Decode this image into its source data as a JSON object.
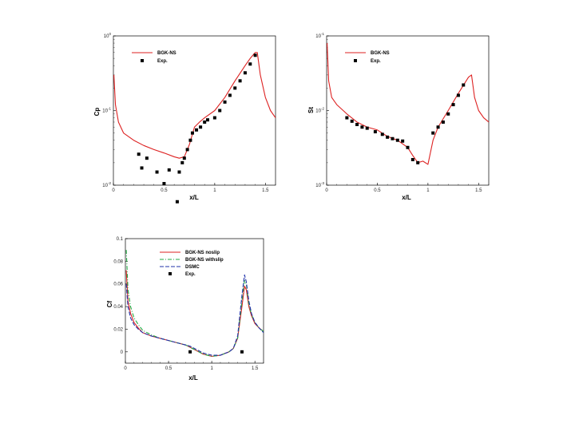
{
  "chart_data": [
    {
      "type": "line",
      "id": "cp",
      "xlabel": "x/L",
      "ylabel": "Cp",
      "xlim": [
        0,
        1.6
      ],
      "ylog": true,
      "ylim": [
        0.01,
        1
      ],
      "xticks": [
        {
          "v": 0,
          "label": "0"
        },
        {
          "v": 0.5,
          "label": "0.5"
        },
        {
          "v": 1,
          "label": "1"
        },
        {
          "v": 1.5,
          "label": "1.5"
        }
      ],
      "yticks": [
        {
          "v": 1,
          "base": "10",
          "exp": "0"
        },
        {
          "v": 0.1,
          "base": "10",
          "exp": "-1"
        },
        {
          "v": 0.01,
          "base": "10",
          "exp": "-2"
        }
      ],
      "legend": [
        "BGK-NS",
        "Exp."
      ],
      "series": [
        {
          "name": "BGK-NS",
          "color": "#dd2222",
          "style": "solid",
          "x": [
            0.005,
            0.02,
            0.05,
            0.1,
            0.2,
            0.3,
            0.4,
            0.5,
            0.6,
            0.65,
            0.7,
            0.75,
            0.8,
            0.85,
            0.9,
            1.0,
            1.1,
            1.2,
            1.3,
            1.35,
            1.4,
            1.42,
            1.45,
            1.5,
            1.55,
            1.6
          ],
          "y": [
            0.3,
            0.12,
            0.07,
            0.05,
            0.04,
            0.034,
            0.03,
            0.027,
            0.024,
            0.023,
            0.024,
            0.035,
            0.06,
            0.07,
            0.08,
            0.1,
            0.15,
            0.25,
            0.4,
            0.5,
            0.6,
            0.6,
            0.3,
            0.15,
            0.1,
            0.08
          ]
        }
      ],
      "points": {
        "name": "Exp.",
        "x": [
          0.25,
          0.28,
          0.33,
          0.43,
          0.5,
          0.55,
          0.63,
          0.65,
          0.68,
          0.7,
          0.73,
          0.76,
          0.78,
          0.82,
          0.86,
          0.9,
          0.93,
          1.0,
          1.05,
          1.1,
          1.15,
          1.2,
          1.25,
          1.3,
          1.35,
          1.4
        ],
        "y": [
          0.026,
          0.017,
          0.023,
          0.015,
          0.0105,
          0.016,
          0.006,
          0.015,
          0.02,
          0.023,
          0.03,
          0.04,
          0.05,
          0.055,
          0.06,
          0.07,
          0.075,
          0.08,
          0.1,
          0.13,
          0.16,
          0.2,
          0.25,
          0.32,
          0.42,
          0.55
        ]
      }
    },
    {
      "type": "line",
      "id": "st",
      "xlabel": "x/L",
      "ylabel": "St",
      "xlim": [
        0,
        1.6
      ],
      "ylog": true,
      "ylim": [
        0.001,
        0.1
      ],
      "xticks": [
        {
          "v": 0,
          "label": "0"
        },
        {
          "v": 0.5,
          "label": "0.5"
        },
        {
          "v": 1,
          "label": "1"
        },
        {
          "v": 1.5,
          "label": "1.5"
        }
      ],
      "yticks": [
        {
          "v": 0.1,
          "base": "10",
          "exp": "-1"
        },
        {
          "v": 0.01,
          "base": "10",
          "exp": "-2"
        },
        {
          "v": 0.001,
          "base": "10",
          "exp": "-3"
        }
      ],
      "legend": [
        "BGK-NS",
        "Exp."
      ],
      "series": [
        {
          "name": "BGK-NS",
          "color": "#dd2222",
          "style": "solid",
          "x": [
            0.005,
            0.02,
            0.05,
            0.1,
            0.2,
            0.3,
            0.4,
            0.5,
            0.6,
            0.7,
            0.8,
            0.85,
            0.9,
            0.95,
            1.0,
            1.05,
            1.1,
            1.2,
            1.3,
            1.4,
            1.43,
            1.46,
            1.5,
            1.55,
            1.6
          ],
          "y": [
            0.08,
            0.025,
            0.015,
            0.012,
            0.009,
            0.007,
            0.006,
            0.0055,
            0.0045,
            0.004,
            0.0032,
            0.0025,
            0.002,
            0.0021,
            0.0019,
            0.004,
            0.006,
            0.01,
            0.017,
            0.028,
            0.03,
            0.015,
            0.01,
            0.008,
            0.007
          ]
        }
      ],
      "points": {
        "name": "Exp.",
        "x": [
          0.2,
          0.25,
          0.3,
          0.35,
          0.4,
          0.48,
          0.55,
          0.6,
          0.65,
          0.7,
          0.75,
          0.8,
          0.85,
          0.9,
          1.05,
          1.1,
          1.15,
          1.2,
          1.25,
          1.3,
          1.35
        ],
        "y": [
          0.008,
          0.0072,
          0.0065,
          0.006,
          0.0058,
          0.0052,
          0.0048,
          0.0044,
          0.0042,
          0.004,
          0.0039,
          0.0032,
          0.0022,
          0.002,
          0.005,
          0.006,
          0.007,
          0.009,
          0.012,
          0.016,
          0.022
        ]
      }
    },
    {
      "type": "line",
      "id": "cf",
      "xlabel": "x/L",
      "ylabel": "Cf",
      "xlim": [
        0,
        1.6
      ],
      "ylog": false,
      "ylim": [
        -0.01,
        0.1
      ],
      "xticks": [
        {
          "v": 0,
          "label": "0"
        },
        {
          "v": 0.5,
          "label": "0.5"
        },
        {
          "v": 1,
          "label": "1"
        },
        {
          "v": 1.5,
          "label": "1.5"
        }
      ],
      "yticks": [
        {
          "v": 0.1,
          "label": "0.1"
        },
        {
          "v": 0.08,
          "label": "0.08"
        },
        {
          "v": 0.06,
          "label": "0.06"
        },
        {
          "v": 0.04,
          "label": "0.04"
        },
        {
          "v": 0.02,
          "label": "0.02"
        },
        {
          "v": 0,
          "label": "0"
        }
      ],
      "legend": [
        "BGK-NS noslip",
        "BGK-NS withslip",
        "DSMC",
        "Exp."
      ],
      "series": [
        {
          "name": "BGK-NS noslip",
          "color": "#dd2222",
          "style": "solid",
          "x": [
            0.01,
            0.03,
            0.06,
            0.1,
            0.15,
            0.2,
            0.3,
            0.4,
            0.5,
            0.6,
            0.7,
            0.75,
            0.8,
            0.85,
            0.9,
            1.0,
            1.1,
            1.2,
            1.25,
            1.3,
            1.35,
            1.38,
            1.4,
            1.43,
            1.46,
            1.5,
            1.55,
            1.6
          ],
          "y": [
            0.072,
            0.045,
            0.034,
            0.026,
            0.021,
            0.017,
            0.014,
            0.012,
            0.01,
            0.008,
            0.006,
            0.004,
            0.002,
            0.0,
            -0.002,
            -0.004,
            -0.003,
            0.0,
            0.003,
            0.012,
            0.04,
            0.058,
            0.055,
            0.04,
            0.032,
            0.025,
            0.021,
            0.018
          ]
        },
        {
          "name": "BGK-NS withslip",
          "color": "#22aa44",
          "style": "dashdot",
          "x": [
            0.01,
            0.03,
            0.06,
            0.1,
            0.15,
            0.2,
            0.3,
            0.4,
            0.5,
            0.6,
            0.7,
            0.75,
            0.8,
            0.85,
            0.9,
            1.0,
            1.1,
            1.2,
            1.25,
            1.3,
            1.35,
            1.38,
            1.4,
            1.43,
            1.46,
            1.5,
            1.55,
            1.6
          ],
          "y": [
            0.09,
            0.055,
            0.04,
            0.03,
            0.024,
            0.019,
            0.015,
            0.012,
            0.01,
            0.008,
            0.006,
            0.004,
            0.002,
            0.0,
            -0.002,
            -0.004,
            -0.003,
            0.0,
            0.003,
            0.012,
            0.045,
            0.063,
            0.06,
            0.042,
            0.033,
            0.026,
            0.021,
            0.018
          ]
        },
        {
          "name": "DSMC",
          "color": "#2233aa",
          "style": "dashed",
          "x": [
            0.01,
            0.03,
            0.06,
            0.1,
            0.15,
            0.2,
            0.3,
            0.4,
            0.5,
            0.6,
            0.7,
            0.75,
            0.8,
            0.85,
            0.9,
            1.0,
            1.1,
            1.2,
            1.25,
            1.3,
            1.35,
            1.38,
            1.4,
            1.43,
            1.46,
            1.5,
            1.55,
            1.6
          ],
          "y": [
            0.06,
            0.04,
            0.03,
            0.024,
            0.02,
            0.017,
            0.014,
            0.012,
            0.01,
            0.008,
            0.006,
            0.005,
            0.003,
            0.001,
            -0.001,
            -0.003,
            -0.003,
            0.0,
            0.003,
            0.014,
            0.05,
            0.068,
            0.062,
            0.045,
            0.034,
            0.026,
            0.021,
            0.017
          ]
        }
      ],
      "points": {
        "name": "Exp.",
        "x": [
          0.75,
          1.35
        ],
        "y": [
          0.0,
          0.0
        ]
      }
    }
  ]
}
